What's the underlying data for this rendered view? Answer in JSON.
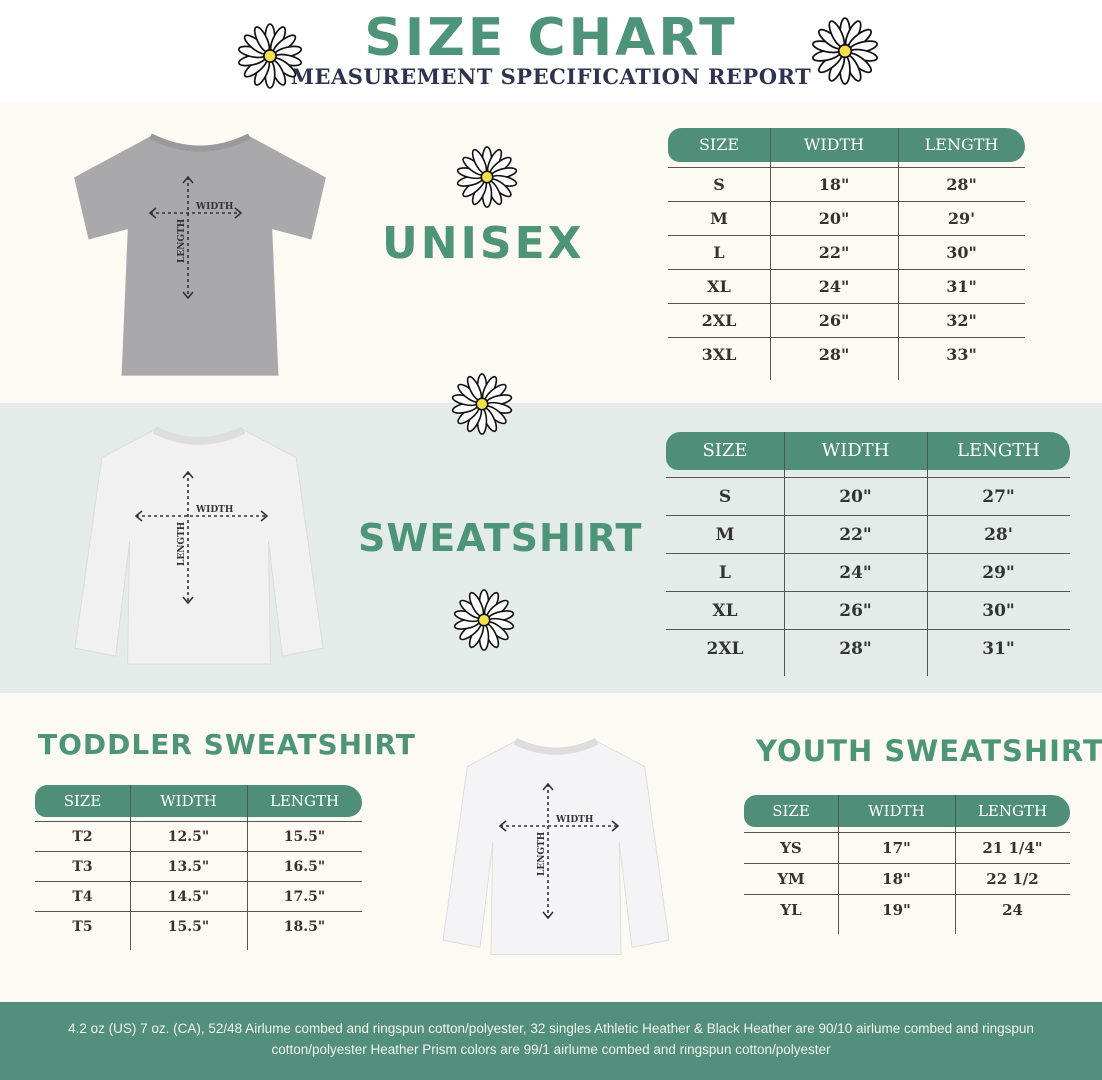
{
  "header": {
    "title": "SIZE CHART",
    "subtitle": "MEASUREMENT SPECIFICATION REPORT"
  },
  "colors": {
    "accent": "#4f8f7a",
    "title_green": "#4e9478",
    "subtitle_navy": "#2e3350",
    "cream": "#fcfaf2",
    "mint": "#e3ece8"
  },
  "diagram_labels": {
    "width": "WIDTH",
    "length": "LENGTH"
  },
  "unisex": {
    "title": "UNISEX",
    "headers": [
      "SIZE",
      "WIDTH",
      "LENGTH"
    ],
    "rows": [
      [
        "S",
        "18\"",
        "28\""
      ],
      [
        "M",
        "20\"",
        "29'"
      ],
      [
        "L",
        "22\"",
        "30\""
      ],
      [
        "XL",
        "24\"",
        "31\""
      ],
      [
        "2XL",
        "26\"",
        "32\""
      ],
      [
        "3XL",
        "28\"",
        "33\""
      ]
    ]
  },
  "sweatshirt": {
    "title": "SWEATSHIRT",
    "headers": [
      "SIZE",
      "WIDTH",
      "LENGTH"
    ],
    "rows": [
      [
        "S",
        "20\"",
        "27\""
      ],
      [
        "M",
        "22\"",
        "28'"
      ],
      [
        "L",
        "24\"",
        "29\""
      ],
      [
        "XL",
        "26\"",
        "30\""
      ],
      [
        "2XL",
        "28\"",
        "31\""
      ]
    ]
  },
  "toddler": {
    "title": "TODDLER SWEATSHIRT",
    "headers": [
      "SIZE",
      "WIDTH",
      "LENGTH"
    ],
    "rows": [
      [
        "T2",
        "12.5\"",
        "15.5\""
      ],
      [
        "T3",
        "13.5\"",
        "16.5\""
      ],
      [
        "T4",
        "14.5\"",
        "17.5\""
      ],
      [
        "T5",
        "15.5\"",
        "18.5\""
      ]
    ]
  },
  "youth": {
    "title": "YOUTH SWEATSHIRT",
    "headers": [
      "SIZE",
      "WIDTH",
      "LENGTH"
    ],
    "rows": [
      [
        "YS",
        "17\"",
        "21 1/4\""
      ],
      [
        "YM",
        "18\"",
        "22 1/2"
      ],
      [
        "YL",
        "19\"",
        "24"
      ]
    ]
  },
  "footer": {
    "text": "4.2 oz (US) 7 oz. (CA), 52/48 Airlume combed and ringspun cotton/polyester, 32 singles Athletic Heather & Black Heather are 90/10 airlume combed and ringspun cotton/polyester Heather Prism colors are 99/1 airlume combed and ringspun cotton/polyester"
  }
}
